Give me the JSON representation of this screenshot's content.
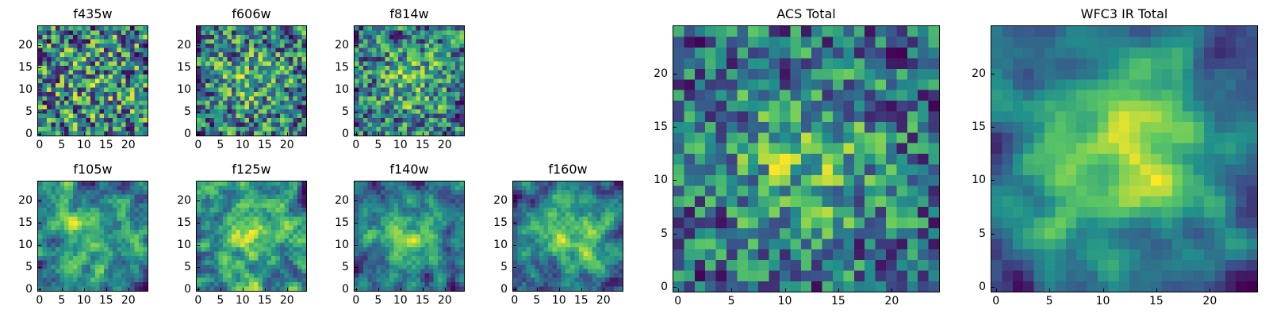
{
  "chart_data": [
    {
      "type": "heatmap",
      "title": "f435w",
      "xlim": [
        0,
        24
      ],
      "ylim": [
        0,
        24
      ],
      "xticks": [
        0,
        5,
        10,
        15,
        20
      ],
      "yticks": [
        0,
        5,
        10,
        15,
        20
      ],
      "grid": false,
      "colormap": "viridis",
      "smoothness": 0.15,
      "peak": 0.1,
      "seed": 11
    },
    {
      "type": "heatmap",
      "title": "f606w",
      "xlim": [
        0,
        24
      ],
      "ylim": [
        0,
        24
      ],
      "xticks": [
        0,
        5,
        10,
        15,
        20
      ],
      "yticks": [
        0,
        5,
        10,
        15,
        20
      ],
      "grid": false,
      "colormap": "viridis",
      "smoothness": 0.25,
      "peak": 0.2,
      "seed": 23
    },
    {
      "type": "heatmap",
      "title": "f814w",
      "xlim": [
        0,
        24
      ],
      "ylim": [
        0,
        24
      ],
      "xticks": [
        0,
        5,
        10,
        15,
        20
      ],
      "yticks": [
        0,
        5,
        10,
        15,
        20
      ],
      "grid": false,
      "colormap": "viridis",
      "smoothness": 0.25,
      "peak": 0.25,
      "seed": 37
    },
    {
      "type": "heatmap",
      "title": "f105w",
      "xlim": [
        0,
        24
      ],
      "ylim": [
        0,
        24
      ],
      "xticks": [
        0,
        5,
        10,
        15,
        20
      ],
      "yticks": [
        0,
        5,
        10,
        15,
        20
      ],
      "grid": false,
      "colormap": "viridis",
      "smoothness": 0.6,
      "peak": 0.2,
      "seed": 41
    },
    {
      "type": "heatmap",
      "title": "f125w",
      "xlim": [
        0,
        24
      ],
      "ylim": [
        0,
        24
      ],
      "xticks": [
        0,
        5,
        10,
        15,
        20
      ],
      "yticks": [
        0,
        5,
        10,
        15,
        20
      ],
      "grid": false,
      "colormap": "viridis",
      "smoothness": 0.6,
      "peak": 0.2,
      "seed": 53
    },
    {
      "type": "heatmap",
      "title": "f140w",
      "xlim": [
        0,
        24
      ],
      "ylim": [
        0,
        24
      ],
      "xticks": [
        0,
        5,
        10,
        15,
        20
      ],
      "yticks": [
        0,
        5,
        10,
        15,
        20
      ],
      "grid": false,
      "colormap": "viridis",
      "smoothness": 0.6,
      "peak": 0.3,
      "seed": 67
    },
    {
      "type": "heatmap",
      "title": "f160w",
      "xlim": [
        0,
        24
      ],
      "ylim": [
        0,
        24
      ],
      "xticks": [
        0,
        5,
        10,
        15,
        20
      ],
      "yticks": [
        0,
        5,
        10,
        15,
        20
      ],
      "grid": false,
      "colormap": "viridis",
      "smoothness": 0.6,
      "peak": 0.4,
      "seed": 79
    },
    {
      "type": "heatmap",
      "title": "ACS Total",
      "xlim": [
        0,
        24
      ],
      "ylim": [
        0,
        24
      ],
      "xticks": [
        0,
        5,
        10,
        15,
        20
      ],
      "yticks": [
        0,
        5,
        10,
        15,
        20
      ],
      "grid": false,
      "colormap": "viridis",
      "smoothness": 0.3,
      "peak": 0.35,
      "seed": 97
    },
    {
      "type": "heatmap",
      "title": "WFC3 IR Total",
      "xlim": [
        0,
        24
      ],
      "ylim": [
        0,
        24
      ],
      "xticks": [
        0,
        5,
        10,
        15,
        20
      ],
      "yticks": [
        0,
        5,
        10,
        15,
        20
      ],
      "grid": false,
      "colormap": "viridis",
      "smoothness": 0.75,
      "peak": 0.5,
      "seed": 131
    }
  ],
  "colors": {
    "viridis_stops": [
      "#440154",
      "#3b528b",
      "#21918c",
      "#5ec962",
      "#fde725"
    ]
  }
}
